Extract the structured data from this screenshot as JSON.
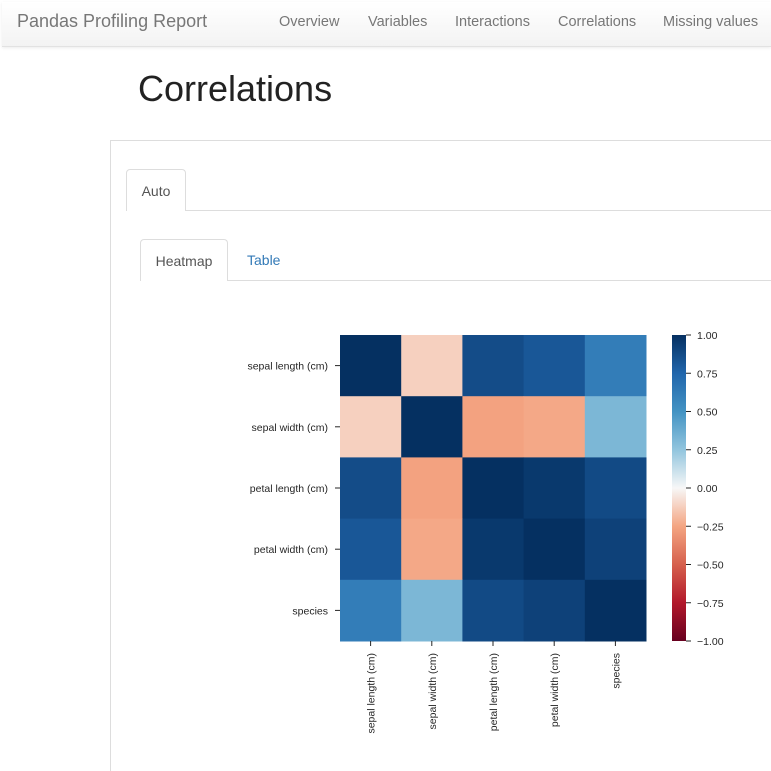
{
  "navbar": {
    "brand": "Pandas Profiling Report",
    "items": [
      "Overview",
      "Variables",
      "Interactions",
      "Correlations",
      "Missing values"
    ]
  },
  "page": {
    "title": "Correlations"
  },
  "tabs": {
    "outer": [
      {
        "label": "Auto",
        "active": true
      }
    ],
    "inner": [
      {
        "label": "Heatmap",
        "active": true
      },
      {
        "label": "Table",
        "active": false
      }
    ]
  },
  "chart_data": {
    "type": "heatmap",
    "title": "",
    "row_labels": [
      "sepal length (cm)",
      "sepal width (cm)",
      "petal length (cm)",
      "petal width (cm)",
      "species"
    ],
    "col_labels": [
      "sepal length (cm)",
      "sepal width (cm)",
      "petal length (cm)",
      "petal width (cm)",
      "species"
    ],
    "values": [
      [
        1.0,
        -0.12,
        0.87,
        0.82,
        0.62
      ],
      [
        -0.12,
        1.0,
        -0.26,
        -0.24,
        0.32
      ],
      [
        0.87,
        -0.26,
        1.0,
        0.96,
        0.88
      ],
      [
        0.82,
        -0.24,
        0.96,
        1.0,
        0.92
      ],
      [
        0.62,
        0.32,
        0.88,
        0.92,
        1.0
      ]
    ],
    "colorbar": {
      "vmin": -1.0,
      "vmax": 1.0,
      "ticks": [
        "1.00",
        "0.75",
        "0.50",
        "0.25",
        "0.00",
        "−0.25",
        "−0.50",
        "−0.75",
        "−1.00"
      ],
      "colormap": "RdBu"
    }
  }
}
